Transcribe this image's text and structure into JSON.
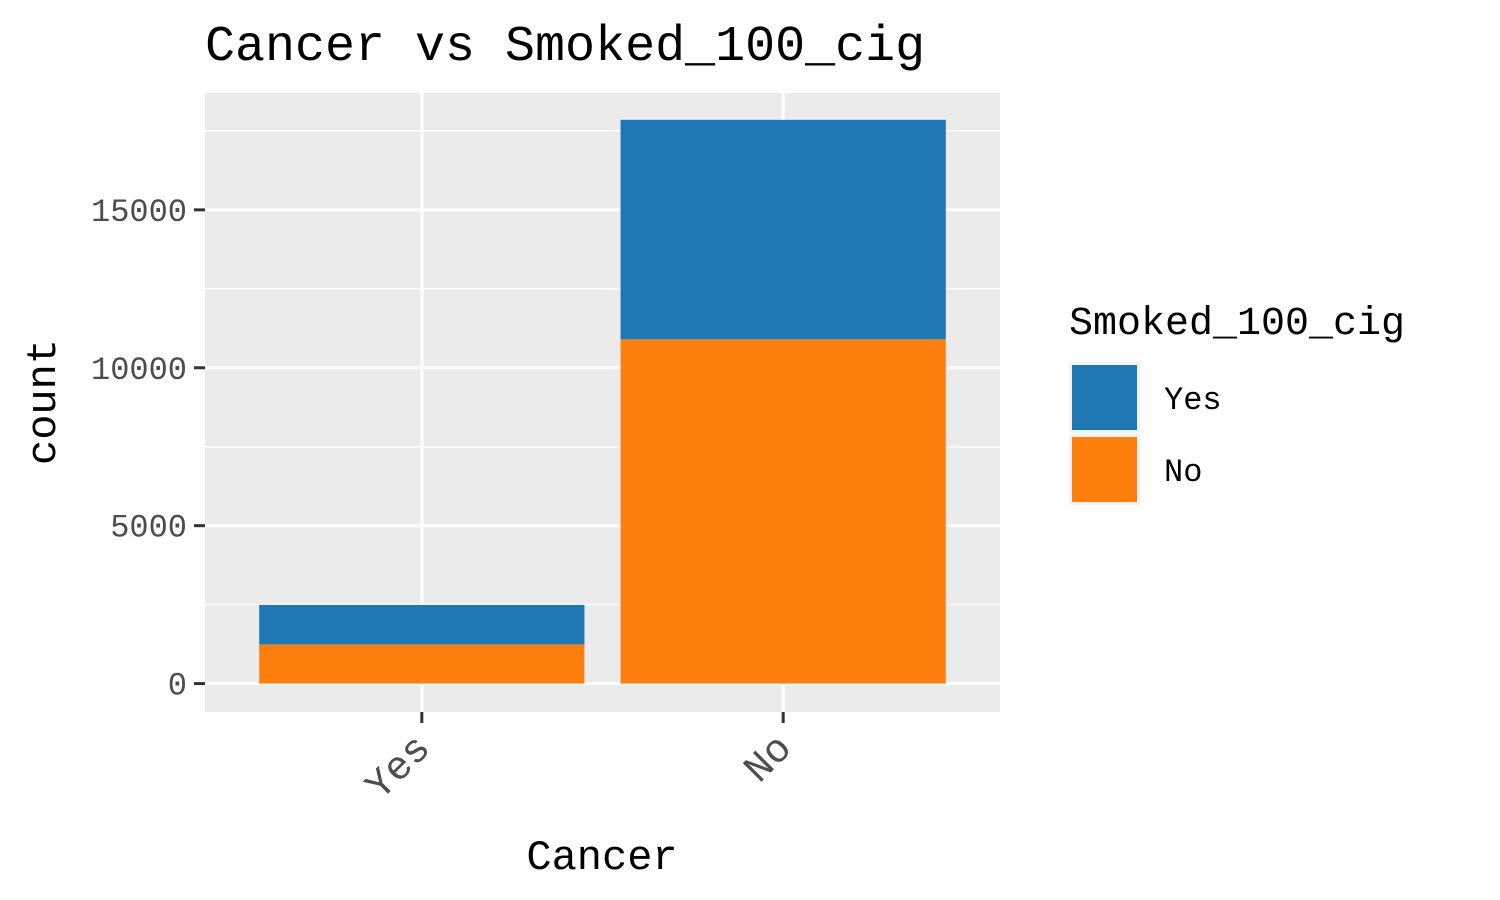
{
  "chart_data": {
    "type": "bar",
    "stacked": true,
    "title": "Cancer vs Smoked_100_cig",
    "xlabel": "Cancer",
    "ylabel": "count",
    "categories": [
      "Yes",
      "No"
    ],
    "series": [
      {
        "name": "Yes",
        "color": "#1f77b4",
        "values": [
          1250,
          6950
        ]
      },
      {
        "name": "No",
        "color": "#ff7f0e",
        "values": [
          1240,
          10900
        ]
      }
    ],
    "ylim": [
      -900,
      18700
    ],
    "yticks": [
      0,
      5000,
      10000,
      15000
    ],
    "ytick_labels": [
      "0",
      "5000",
      "10000",
      "15000"
    ],
    "grid": true,
    "legend": {
      "title": "Smoked_100_cig",
      "placement": "right",
      "entries": [
        "Yes",
        "No"
      ]
    }
  }
}
